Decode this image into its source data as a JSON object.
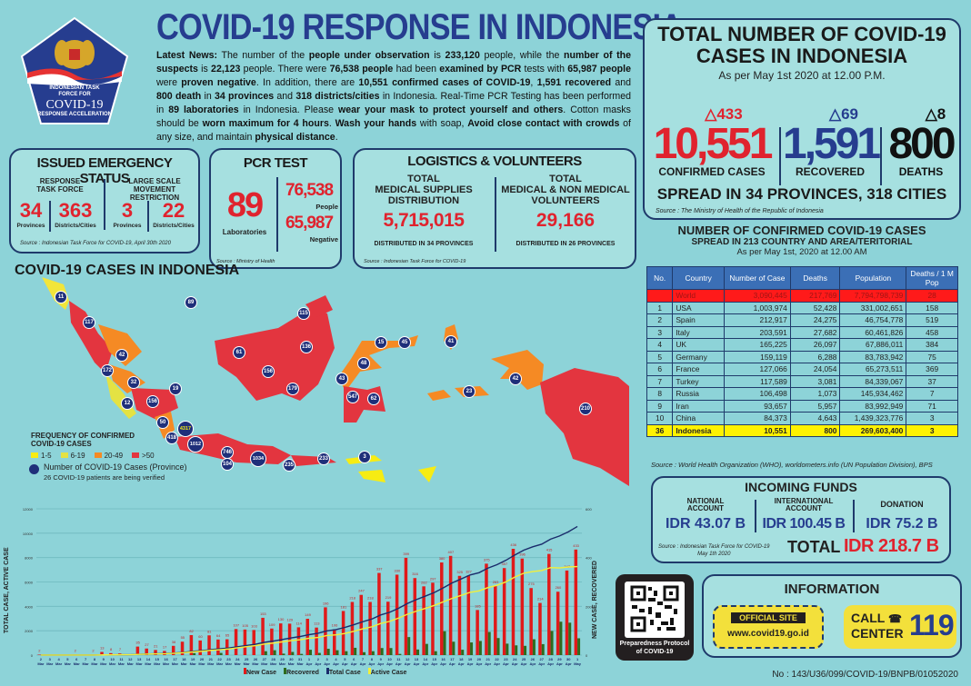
{
  "logo": {
    "line1": "INDONESIAN TASK",
    "line2": "FORCE FOR",
    "line3": "COVID-19",
    "line4": "RESPONSE ACCELERATION"
  },
  "header": {
    "title": "COVID-19 RESPONSE IN INDONESIA",
    "news_label": "Latest News:",
    "news_segments": [
      {
        "t": " The number of the ",
        "b": false
      },
      {
        "t": "people under observation",
        "b": true
      },
      {
        "t": " is ",
        "b": false
      },
      {
        "t": "233,120",
        "b": true
      },
      {
        "t": " people, while the ",
        "b": false
      },
      {
        "t": "number of the suspects",
        "b": true
      },
      {
        "t": " is ",
        "b": false
      },
      {
        "t": "22,123",
        "b": true
      },
      {
        "t": " people. There were ",
        "b": false
      },
      {
        "t": "76,538 people",
        "b": true
      },
      {
        "t": " had been ",
        "b": false
      },
      {
        "t": "examined by PCR",
        "b": true
      },
      {
        "t": " tests with ",
        "b": false
      },
      {
        "t": "65,987 people",
        "b": true
      },
      {
        "t": " were ",
        "b": false
      },
      {
        "t": "proven negative",
        "b": true
      },
      {
        "t": ". In addition, there are ",
        "b": false
      },
      {
        "t": "10,551 confirmed cases of COVID-19",
        "b": true
      },
      {
        "t": ", ",
        "b": false
      },
      {
        "t": "1,591 recovered",
        "b": true
      },
      {
        "t": " and ",
        "b": false
      },
      {
        "t": "800 death",
        "b": true
      },
      {
        "t": " in ",
        "b": false
      },
      {
        "t": "34 provinces",
        "b": true
      },
      {
        "t": " and ",
        "b": false
      },
      {
        "t": "318 districts/cities",
        "b": true
      },
      {
        "t": " in Indonesia. Real-Time PCR Testing has been performed in ",
        "b": false
      },
      {
        "t": "89 laboratories",
        "b": true
      },
      {
        "t": " in Indonesia. Please ",
        "b": false
      },
      {
        "t": "wear your mask to protect yourself and others",
        "b": true
      },
      {
        "t": ". Cotton masks should be ",
        "b": false
      },
      {
        "t": "worn maximum for 4 hours",
        "b": true
      },
      {
        "t": ". ",
        "b": false
      },
      {
        "t": "Wash your hands",
        "b": true
      },
      {
        "t": " with soap, ",
        "b": false
      },
      {
        "t": "Avoid close contact with crowds",
        "b": true
      },
      {
        "t": " of any size, and maintain ",
        "b": false
      },
      {
        "t": "physical distance",
        "b": true
      },
      {
        "t": ".",
        "b": false
      }
    ]
  },
  "total": {
    "title_line1": "TOTAL NUMBER OF COVID-19",
    "title_line2": "CASES IN INDONESIA",
    "as_per": "As per May 1st 2020 at 12.00 P.M.",
    "confirmed": {
      "increase": "433",
      "value": "10,551",
      "label": "CONFIRMED CASES",
      "color": "#e0232e"
    },
    "recovered": {
      "increase": "69",
      "value": "1,591",
      "label": "RECOVERED",
      "color": "#263d8f"
    },
    "deaths": {
      "increase": "8",
      "value": "800",
      "label": "DEATHS",
      "color": "#111111"
    },
    "spread": "SPREAD IN 34 PROVINCES, 318 CITIES",
    "source": "Source : The Ministry of Health of the Republic of Indonesia"
  },
  "emergency": {
    "title": "ISSUED EMERGENCY STATUS",
    "left_heading": [
      "RESPONSE",
      "TASK FORCE"
    ],
    "right_heading": [
      "LARGE SCALE",
      "MOVEMENT RESTRICTION"
    ],
    "items": [
      {
        "value": "34",
        "label": "Provinces"
      },
      {
        "value": "363",
        "label": "Districts/Cities"
      },
      {
        "value": "3",
        "label": "Provinces"
      },
      {
        "value": "22",
        "label": "Districts/Cities"
      }
    ],
    "source": "Source : Indonesian Task Force for COVID-19, April 30th 2020"
  },
  "pcr": {
    "title": "PCR TEST",
    "labs": "89",
    "labs_label": "Laboratories",
    "people": "76,538",
    "people_label": "People",
    "negative": "65,987",
    "negative_label": "Negative",
    "source": "Source : Ministry of Health"
  },
  "logistics": {
    "title": "LOGISTICS & VOLUNTEERS",
    "left": {
      "heading": [
        "TOTAL",
        "MEDICAL SUPPLIES",
        "DISTRIBUTION"
      ],
      "value": "5,715,015",
      "note": "DISTRIBUTED IN 34 PROVINCES"
    },
    "right": {
      "heading": [
        "TOTAL",
        "MEDICAL & NON MEDICAL",
        "VOLUNTEERS"
      ],
      "value": "29,166",
      "note": "DISTRIBUTED IN 26 PROVINCES"
    },
    "source": "Source : Indonesian Task Force for COVID-19"
  },
  "map": {
    "title": "COVID-19 CASES IN INDONESIA",
    "legend_title": [
      "FREQUENCY OF CONFIRMED",
      "COVID-19 CASES"
    ],
    "legend": [
      {
        "label": "1-5",
        "color": "#f7ec13"
      },
      {
        "label": "6-19",
        "color": "#e4e243"
      },
      {
        "label": "20-49",
        "color": "#f58a24"
      },
      {
        "label": ">50",
        "color": "#e3353f"
      }
    ],
    "marker_label": "Number of COVID-19 Cases (Province)",
    "verify_note": "26 COVID-19 patients are being verified",
    "markers": [
      {
        "v": "11",
        "x": 47,
        "y": 22
      },
      {
        "v": "89",
        "x": 190,
        "y": 28
      },
      {
        "v": "117",
        "x": 78,
        "y": 50
      },
      {
        "v": "42",
        "x": 114,
        "y": 86
      },
      {
        "v": "172",
        "x": 98,
        "y": 103
      },
      {
        "v": "32",
        "x": 127,
        "y": 116
      },
      {
        "v": "19",
        "x": 173,
        "y": 123
      },
      {
        "v": "12",
        "x": 120,
        "y": 139
      },
      {
        "v": "156",
        "x": 148,
        "y": 137
      },
      {
        "v": "50",
        "x": 159,
        "y": 160
      },
      {
        "v": "4317",
        "x": 184,
        "y": 167
      },
      {
        "v": "418",
        "x": 169,
        "y": 177
      },
      {
        "v": "1012",
        "x": 195,
        "y": 184
      },
      {
        "v": "746",
        "x": 230,
        "y": 193
      },
      {
        "v": "104",
        "x": 230,
        "y": 206
      },
      {
        "v": "1034",
        "x": 264,
        "y": 200
      },
      {
        "v": "235",
        "x": 298,
        "y": 207
      },
      {
        "v": "233",
        "x": 336,
        "y": 200
      },
      {
        "v": "3",
        "x": 381,
        "y": 198
      },
      {
        "v": "115",
        "x": 314,
        "y": 40
      },
      {
        "v": "61",
        "x": 243,
        "y": 83
      },
      {
        "v": "136",
        "x": 317,
        "y": 77
      },
      {
        "v": "156",
        "x": 275,
        "y": 104
      },
      {
        "v": "179",
        "x": 302,
        "y": 123
      },
      {
        "v": "15",
        "x": 399,
        "y": 72
      },
      {
        "v": "45",
        "x": 425,
        "y": 72
      },
      {
        "v": "41",
        "x": 476,
        "y": 71
      },
      {
        "v": "48",
        "x": 380,
        "y": 95
      },
      {
        "v": "43",
        "x": 356,
        "y": 112
      },
      {
        "v": "547",
        "x": 368,
        "y": 132
      },
      {
        "v": "62",
        "x": 391,
        "y": 134
      },
      {
        "v": "23",
        "x": 496,
        "y": 126
      },
      {
        "v": "42",
        "x": 547,
        "y": 112
      },
      {
        "v": "210",
        "x": 624,
        "y": 145
      }
    ]
  },
  "chart_data": {
    "type": "bar",
    "title": "",
    "xlabel": "",
    "ylabel": "TOTAL CASE, ACTIVE CASE",
    "ylabel_right": "NEW CASE, RECOVERED",
    "ylim": [
      0,
      12000
    ],
    "ylim_right": [
      0,
      600
    ],
    "yticks": [
      0,
      2000,
      4000,
      6000,
      8000,
      10000,
      12000
    ],
    "yticks_right": [
      0,
      200,
      400,
      600
    ],
    "grid": true,
    "legend_position": "bottom",
    "categories": [
      "2 Mar",
      "3 Mar",
      "4 Mar",
      "5 Mar",
      "6 Mar",
      "7 Mar",
      "8 Mar",
      "9 Mar",
      "10 Mar",
      "11 Mar",
      "12 Mar",
      "13 Mar",
      "14 Mar",
      "15 Mar",
      "16 Mar",
      "17 Mar",
      "18 Mar",
      "19 Mar",
      "20 Mar",
      "21 Mar",
      "22 Mar",
      "23 Mar",
      "24 Mar",
      "25 Mar",
      "26 Mar",
      "27 Mar",
      "28 Mar",
      "29 Mar",
      "30 Mar",
      "31 Mar",
      "1 Apr",
      "2 Apr",
      "3 Apr",
      "4 Apr",
      "5 Apr",
      "6 Apr",
      "7 Apr",
      "8 Apr",
      "9 Apr",
      "10 Apr",
      "11 Apr",
      "12 Apr",
      "13 Apr",
      "14 Apr",
      "15 Apr",
      "16 Apr",
      "17 Apr",
      "18 Apr",
      "19 Apr",
      "20 Apr",
      "21 Apr",
      "22 Apr",
      "23 Apr",
      "24 Apr",
      "25 Apr",
      "26 Apr",
      "27 Apr",
      "28 Apr",
      "29 Apr",
      "30 Apr",
      "1 May"
    ],
    "series": [
      {
        "name": "New Case",
        "color": "#e01a1a",
        "axis": "right",
        "values": [
          2,
          0,
          0,
          0,
          2,
          0,
          2,
          13,
          8,
          7,
          0,
          35,
          27,
          21,
          17,
          38,
          55,
          82,
          60,
          81,
          64,
          65,
          107,
          105,
          103,
          153,
          109,
          130,
          129,
          114,
          149,
          113,
          196,
          106,
          181,
          218,
          247,
          218,
          337,
          219,
          330,
          399,
          316,
          282,
          297,
          380,
          407,
          325,
          327,
          185,
          375,
          283,
          357,
          436,
          396,
          275,
          214,
          415,
          260,
          347,
          433
        ]
      },
      {
        "name": "Recovered",
        "color": "#2e6b1e",
        "axis": "right",
        "values": [
          0,
          0,
          0,
          0,
          0,
          0,
          0,
          0,
          0,
          0,
          0,
          0,
          0,
          0,
          0,
          0,
          0,
          8,
          0,
          0,
          9,
          0,
          0,
          0,
          0,
          16,
          20,
          6,
          13,
          5,
          22,
          9,
          26,
          20,
          16,
          30,
          12,
          16,
          29,
          29,
          5,
          74,
          23,
          46,
          16,
          98,
          55,
          22,
          52,
          58,
          95,
          70,
          47,
          40,
          38,
          65,
          45,
          99,
          137,
          133,
          69
        ]
      },
      {
        "name": "Total Case",
        "color": "#1a2b6b",
        "axis": "left",
        "values": [
          2,
          2,
          2,
          2,
          4,
          4,
          6,
          19,
          27,
          34,
          34,
          69,
          96,
          117,
          134,
          172,
          227,
          309,
          369,
          450,
          514,
          579,
          686,
          790,
          893,
          1046,
          1155,
          1285,
          1414,
          1528,
          1677,
          1790,
          1986,
          2092,
          2273,
          2491,
          2738,
          2956,
          3293,
          3512,
          3842,
          4241,
          4557,
          4839,
          5136,
          5516,
          5923,
          6248,
          6575,
          6760,
          7135,
          7418,
          7775,
          8211,
          8607,
          8882,
          9096,
          9511,
          9771,
          10118,
          10551
        ]
      },
      {
        "name": "Active Case",
        "color": "#f2ef3a",
        "axis": "left",
        "values": [
          2,
          2,
          2,
          2,
          4,
          4,
          6,
          19,
          27,
          30,
          29,
          61,
          85,
          106,
          119,
          154,
          198,
          261,
          317,
          392,
          446,
          503,
          601,
          691,
          779,
          907,
          987,
          1087,
          1190,
          1262,
          1384,
          1452,
          1606,
          1664,
          1777,
          1955,
          2153,
          2320,
          2593,
          2766,
          3038,
          3354,
          3607,
          3833,
          4077,
          4370,
          4659,
          4897,
          5151,
          5268,
          5538,
          5724,
          6005,
          6403,
          6718,
          6852,
          6938,
          7180,
          7149,
          7230,
          7260
        ]
      }
    ],
    "labeled_right_value": "7,260"
  },
  "world_table": {
    "title": "NUMBER OF CONFIRMED COVID-19 CASES",
    "subtitle": "SPREAD IN 213 COUNTRY AND AREA/TERITORIAL",
    "as_per": "As per May 1st, 2020 at 12.00 AM",
    "columns": [
      "No.",
      "Country",
      "Number of Case",
      "Deaths",
      "Population",
      "Deaths / 1 M Pop"
    ],
    "rows": [
      {
        "no": "",
        "country": "World",
        "cases": "3,090,445",
        "deaths": "217,769",
        "pop": "7,794,798,739",
        "dpm": "28",
        "type": "world"
      },
      {
        "no": "1",
        "country": "USA",
        "cases": "1,003,974",
        "deaths": "52,428",
        "pop": "331,002,651",
        "dpm": "158",
        "type": ""
      },
      {
        "no": "2",
        "country": "Spain",
        "cases": "212,917",
        "deaths": "24,275",
        "pop": "46,754,778",
        "dpm": "519",
        "type": ""
      },
      {
        "no": "3",
        "country": "Italy",
        "cases": "203,591",
        "deaths": "27,682",
        "pop": "60,461,826",
        "dpm": "458",
        "type": ""
      },
      {
        "no": "4",
        "country": "UK",
        "cases": "165,225",
        "deaths": "26,097",
        "pop": "67,886,011",
        "dpm": "384",
        "type": ""
      },
      {
        "no": "5",
        "country": "Germany",
        "cases": "159,119",
        "deaths": "6,288",
        "pop": "83,783,942",
        "dpm": "75",
        "type": ""
      },
      {
        "no": "6",
        "country": "France",
        "cases": "127,066",
        "deaths": "24,054",
        "pop": "65,273,511",
        "dpm": "369",
        "type": ""
      },
      {
        "no": "7",
        "country": "Turkey",
        "cases": "117,589",
        "deaths": "3,081",
        "pop": "84,339,067",
        "dpm": "37",
        "type": ""
      },
      {
        "no": "8",
        "country": "Russia",
        "cases": "106,498",
        "deaths": "1,073",
        "pop": "145,934,462",
        "dpm": "7",
        "type": ""
      },
      {
        "no": "9",
        "country": "Iran",
        "cases": "93,657",
        "deaths": "5,957",
        "pop": "83,992,949",
        "dpm": "71",
        "type": ""
      },
      {
        "no": "10",
        "country": "China",
        "cases": "84,373",
        "deaths": "4,643",
        "pop": "1,439,323,776",
        "dpm": "3",
        "type": ""
      },
      {
        "no": "36",
        "country": "Indonesia",
        "cases": "10,551",
        "deaths": "800",
        "pop": "269,603,400",
        "dpm": "3",
        "type": "indo"
      }
    ],
    "source": "Source : World Health Organization (WHO), worldometers.info (UN Population Division), BPS"
  },
  "funds": {
    "title": "INCOMING FUNDS",
    "national": {
      "label": [
        "NATIONAL",
        "ACCOUNT"
      ],
      "value": "IDR 43.07 B"
    },
    "international": {
      "label": [
        "INTERNATIONAL",
        "ACCOUNT"
      ],
      "value": "IDR 100.45 B"
    },
    "donation": {
      "label": [
        "DONATION"
      ],
      "value": "IDR 75.2 B"
    },
    "source": [
      "Source : Indonesian Task Force for COVID-19",
      "May 1th 2020"
    ],
    "total_label": "TOTAL",
    "total_value": "IDR 218.7 B"
  },
  "qr": {
    "caption": "Preparedness Protocol of COVID-19"
  },
  "info": {
    "title": "INFORMATION",
    "site_label": "OFFICIAL SITE",
    "site_url": "www.covid19.go.id",
    "call_label1": "CALL",
    "call_label2": "CENTER",
    "call_number": "119"
  },
  "footer": {
    "doc_no": "No : 143/U36/099/COVID-19/BNPB/01052020"
  }
}
